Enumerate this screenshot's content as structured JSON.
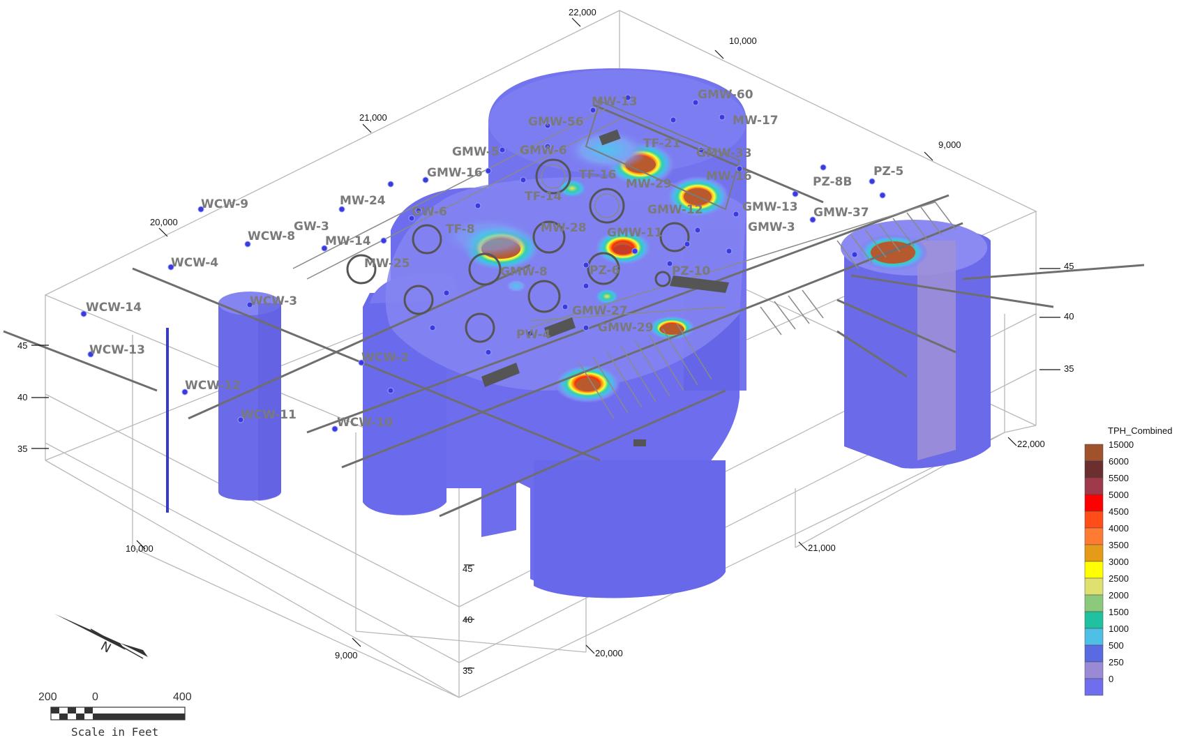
{
  "legend": {
    "title": "TPH_Combined",
    "entries": [
      {
        "label": "15000",
        "color": "#a0522d"
      },
      {
        "label": "6000",
        "color": "#6b2f2f"
      },
      {
        "label": "5500",
        "color": "#a03a4a"
      },
      {
        "label": "5000",
        "color": "#ff0000"
      },
      {
        "label": "4500",
        "color": "#ff4d1a"
      },
      {
        "label": "4000",
        "color": "#ff7a33"
      },
      {
        "label": "3500",
        "color": "#e69a1a"
      },
      {
        "label": "3000",
        "color": "#ffff00"
      },
      {
        "label": "2500",
        "color": "#e0e070"
      },
      {
        "label": "2000",
        "color": "#8cc97a"
      },
      {
        "label": "1500",
        "color": "#1fc1a0"
      },
      {
        "label": "1000",
        "color": "#4fbfe6"
      },
      {
        "label": "500",
        "color": "#5a6ae0"
      },
      {
        "label": "250",
        "color": "#9a8ad6"
      },
      {
        "label": "0",
        "color": "#6f6fee"
      }
    ]
  },
  "axes": {
    "northing": {
      "top_back_22000": "22,000",
      "top_left_21000": "21,000",
      "top_left_20000": "20,000",
      "right_front_22000": "22,000",
      "front_21000": "21,000",
      "front_20000": "20,000"
    },
    "easting": {
      "top_10000": "10,000",
      "top_9000": "9,000",
      "left_10000": "10,000",
      "front_9000": "9,000"
    },
    "elevation": {
      "left_45": "45",
      "left_40": "40",
      "left_35": "35",
      "right_45": "45",
      "right_40": "40",
      "right_35": "35",
      "front_45": "45",
      "front_40": "40",
      "front_35": "35"
    }
  },
  "wells": {
    "MW-13": "MW-13",
    "GMW-60": "GMW-60",
    "GMW-56": "GMW-56",
    "MW-17": "MW-17",
    "TF-21": "TF-21",
    "GMW-5": "GMW-5",
    "GMW-6": "GMW-6",
    "GMW-33": "GMW-33",
    "GMW-16": "GMW-16",
    "TF-16": "TF-16",
    "MW-29": "MW-29",
    "MW-16": "MW-16",
    "PZ-8B": "PZ-8B",
    "PZ-5": "PZ-5",
    "TF-14": "TF-14",
    "WCW-9": "WCW-9",
    "MW-24": "MW-24",
    "GMW-12": "GMW-12",
    "GMW-13": "GMW-13",
    "GMW-37": "GMW-37",
    "GW-6": "GW-6",
    "GW-3": "GW-3",
    "GMW-3": "GMW-3",
    "WCW-8": "WCW-8",
    "TF-8": "TF-8",
    "MW-28": "MW-28",
    "MW-14": "MW-14",
    "GMW-11": "GMW-11",
    "WCW-4": "WCW-4",
    "MW-25": "MW-25",
    "GMW-8": "GMW-8",
    "PZ-6": "PZ-6",
    "PZ-10": "PZ-10",
    "WCW-3": "WCW-3",
    "WCW-14": "WCW-14",
    "GMW-27": "GMW-27",
    "GMW-29": "GMW-29",
    "PW-4": "PW-4",
    "WCW-13": "WCW-13",
    "WCW-2": "WCW-2",
    "WCW-12": "WCW-12",
    "WCW-11": "WCW-11",
    "WCW-10": "WCW-10"
  },
  "scale_bar": {
    "left": "200",
    "zero": "0",
    "right": "400",
    "caption": "Scale in Feet"
  },
  "north_arrow": {
    "letter": "N"
  }
}
